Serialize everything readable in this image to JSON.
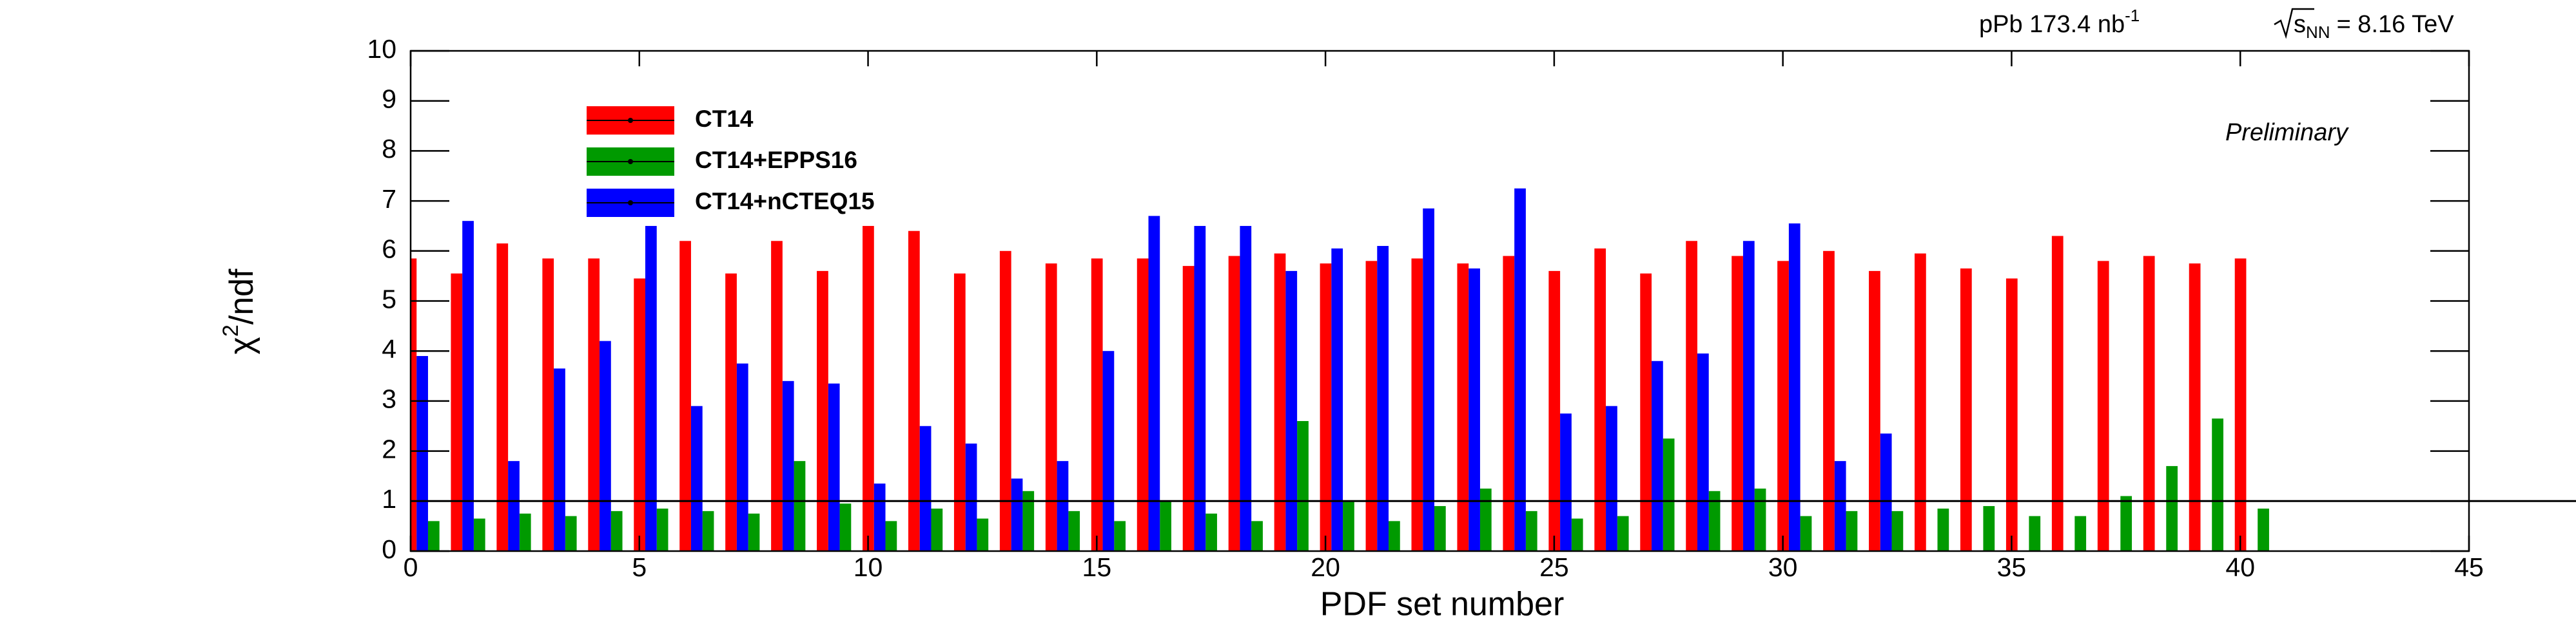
{
  "chart_data": {
    "type": "bar",
    "xlabel": "PDF set number",
    "ylabel": {
      "base": "χ",
      "sup": "2",
      "rest": "/ndf"
    },
    "annotations": {
      "lumi": "pPb 173.4 nb",
      "lumi_sup": "-1",
      "energy_base": "s",
      "energy_sub": "NN",
      "energy_rest": "= 8.16 TeV",
      "status": "Preliminary"
    },
    "x": [
      0,
      1,
      2,
      3,
      4,
      5,
      6,
      7,
      8,
      9,
      10,
      11,
      12,
      13,
      14,
      15,
      16,
      17,
      18,
      19,
      20,
      21,
      22,
      23,
      24,
      25,
      26,
      27,
      28,
      29,
      30,
      31,
      32,
      33,
      34,
      35,
      36,
      37,
      38,
      39,
      40
    ],
    "series": [
      {
        "name": "CT14",
        "color": "#ff0000",
        "values": [
          5.85,
          5.55,
          6.15,
          5.85,
          5.85,
          5.45,
          6.2,
          5.55,
          6.2,
          5.6,
          6.5,
          6.4,
          5.55,
          6.0,
          5.75,
          5.85,
          5.85,
          5.7,
          5.9,
          5.95,
          5.75,
          5.8,
          5.85,
          5.75,
          5.9,
          5.6,
          6.05,
          5.55,
          6.2,
          5.9,
          5.8,
          6.0,
          5.6,
          5.95,
          5.65,
          5.45,
          6.3,
          5.8,
          5.9,
          5.75,
          5.85
        ]
      },
      {
        "name": "CT14+EPPS16",
        "color": "#009a00",
        "values": [
          0.6,
          0.65,
          0.75,
          0.7,
          0.8,
          0.85,
          0.8,
          0.75,
          1.8,
          0.95,
          0.6,
          0.85,
          0.65,
          1.2,
          0.8,
          0.6,
          1.0,
          0.75,
          0.6,
          2.6,
          1.0,
          0.6,
          0.9,
          1.25,
          0.8,
          0.65,
          0.7,
          2.25,
          1.2,
          1.25,
          0.7,
          0.8,
          0.8,
          0.85,
          0.9,
          0.7,
          0.7,
          1.1,
          1.7,
          2.65,
          0.85
        ]
      },
      {
        "name": "CT14+nCTEQ15",
        "color": "#0000ff",
        "values": [
          3.9,
          6.6,
          1.8,
          3.65,
          4.2,
          6.5,
          2.9,
          3.75,
          3.4,
          3.35,
          1.35,
          2.5,
          2.15,
          1.45,
          1.8,
          4.0,
          6.7,
          6.5,
          6.5,
          5.6,
          6.05,
          6.1,
          6.85,
          5.65,
          7.25,
          2.75,
          2.9,
          3.8,
          3.95,
          6.2,
          6.55,
          1.8,
          2.35,
          null,
          null,
          null,
          null,
          null,
          null,
          null,
          null
        ]
      }
    ],
    "hline": 1,
    "xlim": [
      0,
      45
    ],
    "xticks": [
      0,
      5,
      10,
      15,
      20,
      25,
      30,
      35,
      40,
      45
    ],
    "ylim": [
      0,
      10
    ],
    "yticks": [
      0,
      1,
      2,
      3,
      4,
      5,
      6,
      7,
      8,
      9,
      10
    ],
    "legend": "upper left",
    "grid": false
  }
}
